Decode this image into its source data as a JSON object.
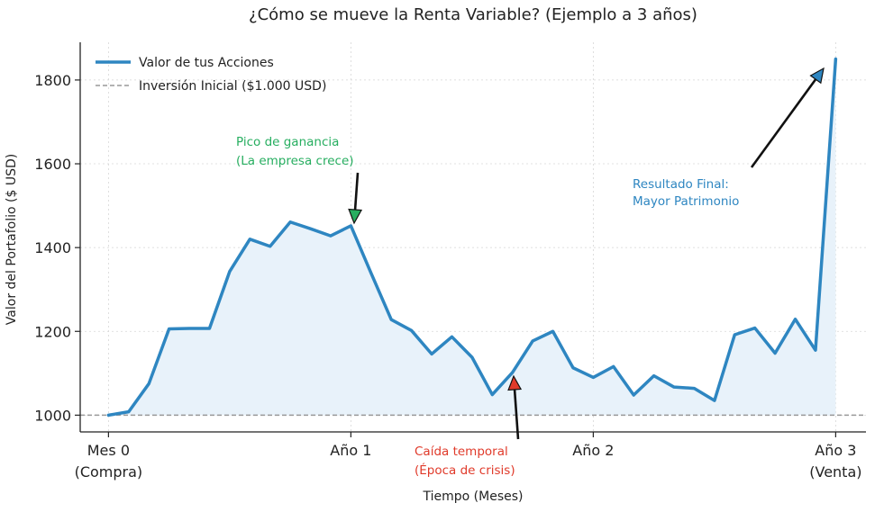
{
  "chart_data": {
    "type": "area",
    "title": "¿Cómo se mueve la Renta Variable? (Ejemplo a 3 años)",
    "xlabel": "Tiempo (Meses)",
    "ylabel": "Valor del Portafolio ($ USD)",
    "xlim": [
      -1.4,
      37.5
    ],
    "ylim": [
      960,
      1890
    ],
    "x_ticks": [
      {
        "value": 0,
        "lines": [
          "Mes 0",
          "(Compra)"
        ]
      },
      {
        "value": 12,
        "lines": [
          "Año 1"
        ]
      },
      {
        "value": 24,
        "lines": [
          "Año 2"
        ]
      },
      {
        "value": 36,
        "lines": [
          "Año 3",
          "(Venta)"
        ]
      }
    ],
    "y_ticks": [
      1000,
      1200,
      1400,
      1600,
      1800
    ],
    "grid": true,
    "legend_position": "top-left",
    "series": [
      {
        "name": "Valor de tus Acciones",
        "color": "#2e86c1",
        "fill_color": "#e8f2fa",
        "x": [
          0,
          1,
          2,
          3,
          4,
          5,
          6,
          7,
          8,
          9,
          10,
          11,
          12,
          13,
          14,
          15,
          16,
          17,
          18,
          19,
          20,
          21,
          22,
          23,
          24,
          25,
          26,
          27,
          28,
          29,
          30,
          31,
          32,
          33,
          34,
          35,
          36
        ],
        "values": [
          1000,
          1008,
          1075,
          1206,
          1207,
          1207,
          1343,
          1420,
          1403,
          1461,
          1445,
          1428,
          1452,
          1339,
          1228,
          1202,
          1146,
          1187,
          1138,
          1049,
          1102,
          1177,
          1200,
          1113,
          1090,
          1116,
          1048,
          1094,
          1067,
          1064,
          1035,
          1192,
          1208,
          1148,
          1229,
          1155,
          1850
        ]
      }
    ],
    "reference_line": {
      "name": "Inversión Inicial ($1.000 USD)",
      "value": 1000,
      "color": "#999999"
    },
    "annotations": [
      {
        "lines": [
          "Pico de ganancia",
          "(La empresa crece)"
        ],
        "color": "#27ae60",
        "target": {
          "x": 12,
          "y": 1452
        },
        "arrow_fill": "#27ae60"
      },
      {
        "lines": [
          "Caída temporal",
          "(Época de crisis)"
        ],
        "color": "#e03a2a",
        "target": {
          "x": 20,
          "y": 1102
        },
        "arrow_fill": "#e03a2a"
      },
      {
        "lines": [
          "Resultado Final:",
          "Mayor Patrimonio"
        ],
        "color": "#2e86c1",
        "target": {
          "x": 36,
          "y": 1850
        },
        "arrow_fill": "#2e86c1"
      }
    ]
  }
}
